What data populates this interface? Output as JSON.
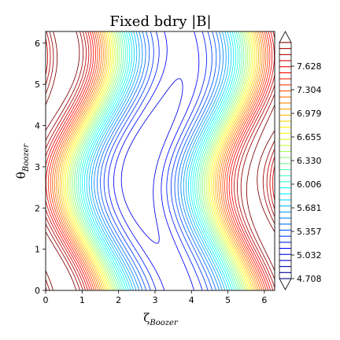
{
  "chart_data": {
    "type": "contour",
    "title": "Fixed bdry |B|",
    "xlabel_symbol": "ζ",
    "xlabel_sub": "Boozer",
    "ylabel_symbol": "θ",
    "ylabel_sub": "Boozer",
    "xlim": [
      0,
      6.283
    ],
    "ylim": [
      0,
      6.283
    ],
    "x_ticks": [
      0,
      1,
      2,
      3,
      4,
      5,
      6
    ],
    "y_ticks": [
      0,
      1,
      2,
      3,
      4,
      5,
      6
    ],
    "x_tick_labels": [
      "0",
      "1",
      "2",
      "3",
      "4",
      "5",
      "6"
    ],
    "y_tick_labels": [
      "0",
      "1",
      "2",
      "3",
      "4",
      "5",
      "6"
    ],
    "colormap": "jet",
    "level_min": 4.708,
    "level_max": 7.953,
    "level_count": 40,
    "colorbar_extend": "both",
    "colorbar_tick_values": [
      4.708,
      5.032,
      5.357,
      5.681,
      6.006,
      6.33,
      6.655,
      6.979,
      7.304,
      7.628
    ],
    "colorbar_tick_labels": [
      "4.708",
      "5.032",
      "5.357",
      "5.681",
      "6.006",
      "6.330",
      "6.655",
      "6.979",
      "7.304",
      "7.628"
    ]
  }
}
